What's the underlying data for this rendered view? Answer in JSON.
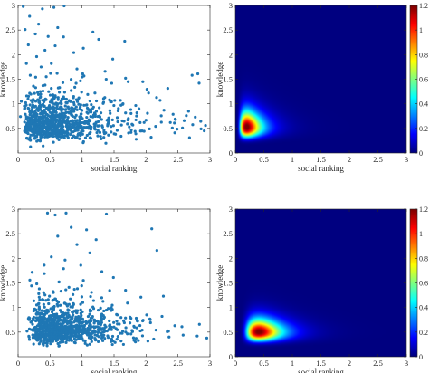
{
  "colors": {
    "marker": "#1f77b4",
    "axis": "#262626",
    "colormap": "jet"
  },
  "chart_data": [
    {
      "type": "scatter",
      "panel": "top-left",
      "title": "",
      "xlabel": "social ranking",
      "ylabel": "knowledge",
      "xlim": [
        0,
        3
      ],
      "ylim": [
        0,
        3
      ],
      "xticks": [
        "0",
        "0.5",
        "1",
        "1.5",
        "2",
        "2.5",
        "3"
      ],
      "yticks": [
        "0.5",
        "1",
        "1.5",
        "2",
        "2.5",
        "3"
      ],
      "grid": false,
      "distribution": {
        "n_points": 1000,
        "x_mode": 0.28,
        "x_median": 0.55,
        "y_mode": 0.5,
        "y_median": 0.62,
        "x_max": 2.98,
        "y_max": 3.0
      },
      "points": [
        [
          0.08,
          2.98
        ],
        [
          0.38,
          2.93
        ],
        [
          0.56,
          2.96
        ],
        [
          0.72,
          2.99
        ],
        [
          0.18,
          2.78
        ],
        [
          0.32,
          2.62
        ],
        [
          0.11,
          2.51
        ],
        [
          0.27,
          2.42
        ],
        [
          0.47,
          2.37
        ],
        [
          0.62,
          2.55
        ],
        [
          0.71,
          2.36
        ],
        [
          1.02,
          2.13
        ],
        [
          1.17,
          2.46
        ],
        [
          1.26,
          2.31
        ],
        [
          0.16,
          2.2
        ],
        [
          0.42,
          2.09
        ],
        [
          0.58,
          2.18
        ],
        [
          0.87,
          2.04
        ],
        [
          1.48,
          1.91
        ],
        [
          2.72,
          1.58
        ],
        [
          2.81,
          1.61
        ],
        [
          2.83,
          1.42
        ],
        [
          1.36,
          1.66
        ],
        [
          1.68,
          1.52
        ],
        [
          0.92,
          1.71
        ],
        [
          1.01,
          1.61
        ],
        [
          1.72,
          1.45
        ],
        [
          1.95,
          1.45
        ],
        [
          2.04,
          1.22
        ],
        [
          2.22,
          1.07
        ],
        [
          1.6,
          1.07
        ],
        [
          1.89,
          0.9
        ],
        [
          2.28,
          0.87
        ],
        [
          2.38,
          0.62
        ],
        [
          2.57,
          0.51
        ],
        [
          2.63,
          0.76
        ],
        [
          2.77,
          0.73
        ],
        [
          2.86,
          0.49
        ],
        [
          2.93,
          0.56
        ],
        [
          2.91,
          0.45
        ],
        [
          2.46,
          0.68
        ],
        [
          2.15,
          0.54
        ],
        [
          1.97,
          0.62
        ],
        [
          1.71,
          0.59
        ],
        [
          1.55,
          0.72
        ],
        [
          1.41,
          0.61
        ],
        [
          1.27,
          0.75
        ],
        [
          1.14,
          0.83
        ],
        [
          1.03,
          0.97
        ],
        [
          0.95,
          1.12
        ],
        [
          0.83,
          1.27
        ],
        [
          0.7,
          1.43
        ],
        [
          0.61,
          1.62
        ],
        [
          0.52,
          1.82
        ],
        [
          0.44,
          1.55
        ],
        [
          0.36,
          1.75
        ],
        [
          0.29,
          1.96
        ],
        [
          0.24,
          1.36
        ],
        [
          0.19,
          1.58
        ],
        [
          0.13,
          1.82
        ],
        [
          1.84,
          0.39
        ],
        [
          1.61,
          0.34
        ],
        [
          1.37,
          0.41
        ],
        [
          1.21,
          0.48
        ],
        [
          1.08,
          0.36
        ],
        [
          2.08,
          0.32
        ],
        [
          2.45,
          0.41
        ],
        [
          2.68,
          0.31
        ],
        [
          0.96,
          0.29
        ],
        [
          0.05,
          1.05
        ]
      ]
    },
    {
      "type": "heatmap",
      "panel": "top-right",
      "title": "",
      "xlabel": "social ranking",
      "ylabel": "knowledge",
      "xlim": [
        0,
        3
      ],
      "ylim": [
        0,
        3
      ],
      "xticks": [
        "0",
        "0.5",
        "1",
        "1.5",
        "2",
        "2.5",
        "3"
      ],
      "yticks": [
        "0",
        "0.5",
        "1",
        "1.5",
        "2",
        "2.5",
        "3"
      ],
      "colormap": "jet",
      "colorbar": {
        "min": 0,
        "max": 1.2,
        "ticks": [
          "0",
          "0.2",
          "0.4",
          "0.6",
          "0.8",
          "1",
          "1.2"
        ]
      },
      "density": {
        "shape": "lognormal",
        "peak_x": 0.23,
        "peak_y": 0.55,
        "peak_value": 1.2
      }
    },
    {
      "type": "scatter",
      "panel": "bottom-left",
      "title": "",
      "xlabel": "social ranking",
      "ylabel": "knowledge",
      "xlim": [
        0,
        3
      ],
      "ylim": [
        0,
        3
      ],
      "xticks": [
        "0",
        "0.5",
        "1",
        "1.5",
        "2",
        "2.5",
        "3"
      ],
      "yticks": [
        "0.5",
        "1",
        "1.5",
        "2",
        "2.5",
        "3"
      ],
      "grid": false,
      "distribution": {
        "n_points": 1000,
        "x_mode": 0.45,
        "x_median": 0.68,
        "y_mode": 0.5,
        "y_median": 0.6,
        "x_max": 2.97,
        "y_max": 2.92
      },
      "points": [
        [
          0.46,
          2.92
        ],
        [
          0.58,
          2.88
        ],
        [
          0.75,
          2.92
        ],
        [
          1.38,
          2.9
        ],
        [
          1.07,
          2.58
        ],
        [
          0.83,
          2.63
        ],
        [
          0.62,
          2.45
        ],
        [
          1.22,
          2.38
        ],
        [
          2.09,
          2.6
        ],
        [
          2.17,
          2.16
        ],
        [
          0.92,
          2.28
        ],
        [
          1.12,
          2.11
        ],
        [
          0.52,
          2.03
        ],
        [
          0.98,
          1.86
        ],
        [
          1.31,
          1.73
        ],
        [
          1.49,
          1.61
        ],
        [
          0.71,
          1.79
        ],
        [
          0.41,
          1.69
        ],
        [
          1.68,
          1.35
        ],
        [
          1.92,
          1.21
        ],
        [
          1.71,
          1.09
        ],
        [
          2.25,
          0.82
        ],
        [
          2.07,
          0.69
        ],
        [
          1.94,
          0.54
        ],
        [
          2.45,
          0.63
        ],
        [
          2.8,
          0.42
        ],
        [
          2.95,
          0.38
        ],
        [
          2.58,
          0.44
        ],
        [
          1.81,
          0.62
        ],
        [
          1.55,
          0.85
        ],
        [
          1.41,
          0.98
        ],
        [
          1.18,
          1.14
        ],
        [
          0.88,
          1.37
        ],
        [
          0.64,
          1.52
        ],
        [
          0.33,
          1.21
        ],
        [
          0.21,
          1.44
        ],
        [
          0.26,
          0.97
        ],
        [
          1.02,
          1.55
        ],
        [
          0.55,
          1.15
        ],
        [
          0.77,
          1.03
        ],
        [
          1.25,
          0.49
        ],
        [
          1.61,
          0.32
        ],
        [
          2.12,
          0.36
        ],
        [
          1.05,
          0.27
        ],
        [
          0.14,
          0.52
        ],
        [
          0.18,
          0.78
        ],
        [
          2.36,
          0.4
        ],
        [
          2.01,
          0.85
        ],
        [
          1.65,
          0.73
        ],
        [
          1.88,
          0.33
        ]
      ]
    },
    {
      "type": "heatmap",
      "panel": "bottom-right",
      "title": "",
      "xlabel": "social ranking",
      "ylabel": "knowledge",
      "xlim": [
        0,
        3
      ],
      "ylim": [
        0,
        3
      ],
      "xticks": [
        "0",
        "0.5",
        "1",
        "1.5",
        "2",
        "2.5",
        "3"
      ],
      "yticks": [
        "0",
        "0.5",
        "1",
        "1.5",
        "2",
        "2.5",
        "3"
      ],
      "colormap": "jet",
      "colorbar": {
        "min": 0,
        "max": 1.2,
        "ticks": [
          "0",
          "0.2",
          "0.4",
          "0.6",
          "0.8",
          "1",
          "1.2"
        ]
      },
      "density": {
        "shape": "lognormal",
        "peak_x": 0.45,
        "peak_y": 0.52,
        "peak_value": 1.2
      }
    }
  ]
}
